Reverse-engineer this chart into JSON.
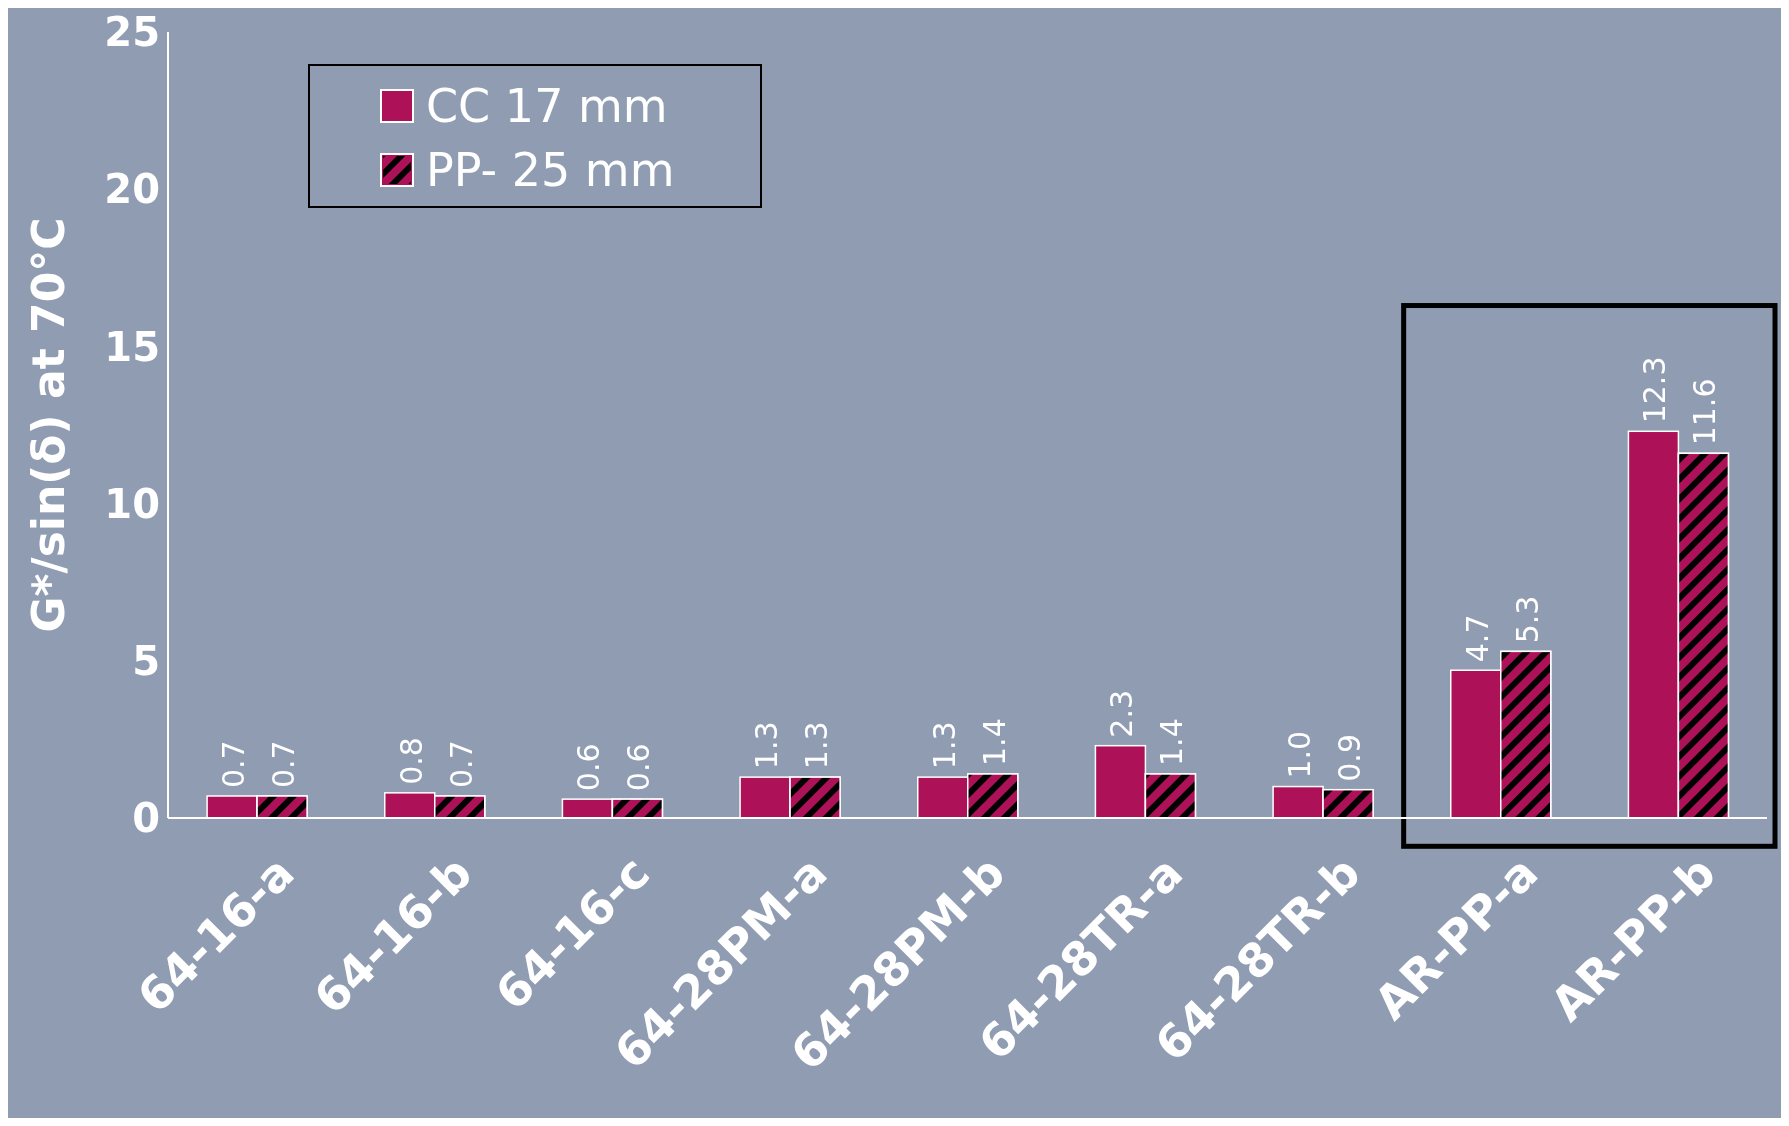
{
  "chart_data": {
    "type": "bar",
    "ylabel": "G*/sin(δ) at 70°C",
    "categories": [
      "64-16-a",
      "64-16-b",
      "64-16-c",
      "64-28PM-a",
      "64-28PM-b",
      "64-28TR-a",
      "64-28TR-b",
      "AR-PP-a",
      "AR-PP-b"
    ],
    "series": [
      {
        "name": "CC 17 mm",
        "color": "#ad1157",
        "values": [
          0.7,
          0.8,
          0.6,
          1.3,
          1.3,
          2.3,
          1.0,
          4.7,
          12.3
        ],
        "value_labels": [
          "0.7",
          "0.8",
          "0.6",
          "1.3",
          "1.3",
          "2.3",
          "1.0",
          "4.7",
          "12.3"
        ]
      },
      {
        "name": "PP- 25 mm",
        "color": "#ad1157",
        "values": [
          0.7,
          0.7,
          0.6,
          1.3,
          1.4,
          1.4,
          0.9,
          5.3,
          11.6
        ],
        "value_labels": [
          "0.7",
          "0.7",
          "0.6",
          "1.3",
          "1.4",
          "1.4",
          "0.9",
          "5.3",
          "11.6"
        ]
      }
    ],
    "ylim": [
      0,
      25
    ],
    "yticks": [
      0,
      5,
      10,
      15,
      20,
      25
    ],
    "grid": false,
    "legend": "top left"
  }
}
